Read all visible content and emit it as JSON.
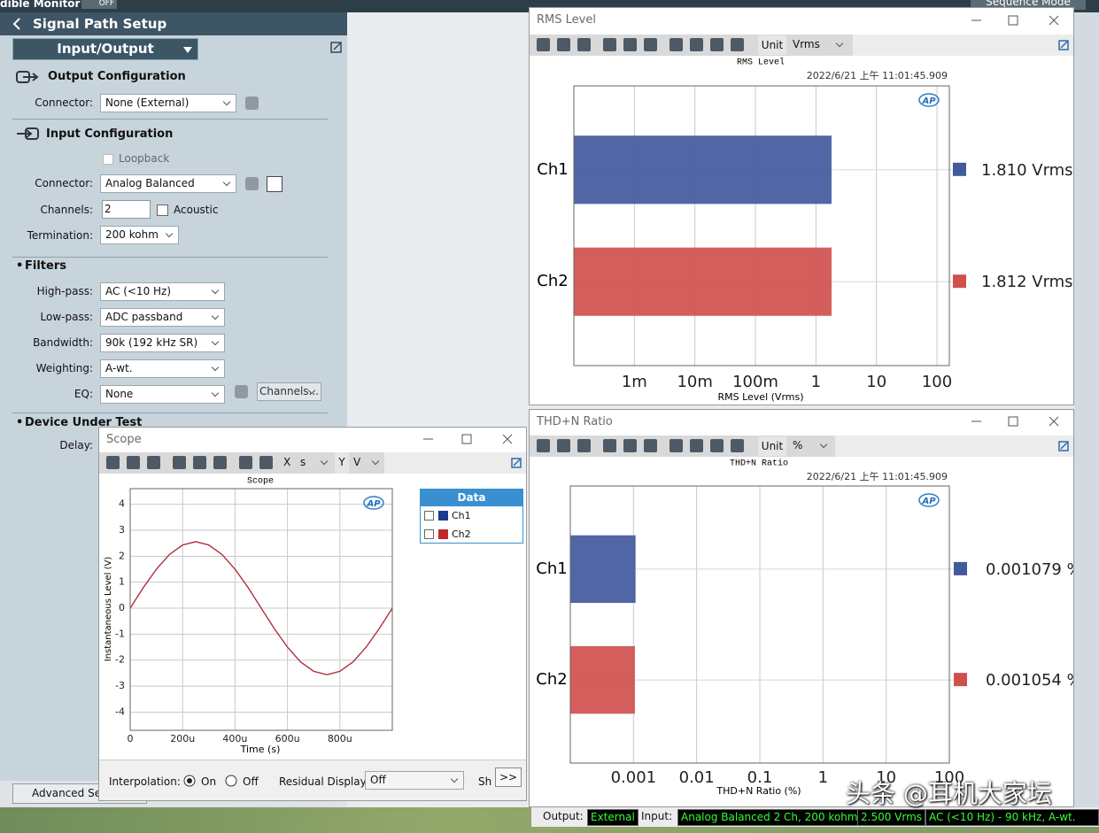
{
  "top_bar": {
    "monitor": "dible Monitor",
    "monitor_state": "OFF",
    "sequence_mode": "Sequence Mode"
  },
  "signal_path": {
    "title": "Signal Path Setup",
    "page": "Input/Output",
    "output_configuration": {
      "title": "Output Configuration",
      "connector_label": "Connector:",
      "connector": "None (External)"
    },
    "input_configuration": {
      "title": "Input Configuration",
      "loopback": "Loopback",
      "connector_label": "Connector:",
      "connector": "Analog Balanced",
      "channels_label": "Channels:",
      "channels": 2,
      "acoustic": "Acoustic",
      "termination_label": "Termination:",
      "termination": "200 kohm"
    },
    "filters": {
      "title": "Filters",
      "rows": [
        [
          "High-pass:",
          "AC (<10 Hz)"
        ],
        [
          "Low-pass:",
          "ADC passband"
        ],
        [
          "Bandwidth:",
          "90k (192 kHz SR)"
        ],
        [
          "Weighting:",
          "A-wt."
        ],
        [
          "EQ:",
          "None"
        ]
      ],
      "channels_button": "Channels..."
    },
    "device_under_test": {
      "title": "Device Under Test",
      "delay_label": "Delay:"
    },
    "advanced_button": "Advanced Sett"
  },
  "logo": "AP",
  "rms_window": {
    "title": "RMS Level",
    "unit_label": "Unit",
    "unit": "Vrms",
    "chart_data": {
      "type": "bar",
      "orientation": "horizontal",
      "title": "RMS Level",
      "timestamp": "2022/6/21 上午 11:01:45.909",
      "x_label": "RMS Level (Vrms)",
      "categories": [
        "Ch1",
        "Ch2"
      ],
      "values": [
        1.81,
        1.812
      ],
      "value_labels": [
        "1.810 Vrms",
        "1.812 Vrms"
      ],
      "colors": [
        "#42599c",
        "#d0504d"
      ],
      "xscale": "log",
      "xlim": [
        0.0001,
        160
      ],
      "xticks": [
        {
          "value": 0.001,
          "label": "1m"
        },
        {
          "value": 0.01,
          "label": "10m"
        },
        {
          "value": 0.1,
          "label": "100m"
        },
        1,
        10,
        100
      ],
      "grid": true
    }
  },
  "thdn_window": {
    "title": "THD+N Ratio",
    "unit_label": "Unit",
    "unit": "%",
    "chart_data": {
      "type": "bar",
      "orientation": "horizontal",
      "title": "THD+N Ratio",
      "timestamp": "2022/6/21 上午 11:01:45.909",
      "x_label": "THD+N Ratio (%)",
      "categories": [
        "Ch1",
        "Ch2"
      ],
      "values": [
        0.001079,
        0.001054
      ],
      "value_labels": [
        "0.001079 %",
        "0.001054 %"
      ],
      "colors": [
        "#42599c",
        "#d0504d"
      ],
      "xscale": "log",
      "xlim": [
        0.0001,
        100
      ],
      "xticks": [
        0.001,
        0.01,
        0.1,
        1,
        10,
        100
      ],
      "grid": true
    }
  },
  "scope_window": {
    "title": "Scope",
    "x_axis": "X",
    "x_unit": "s",
    "y_axis": "Y",
    "y_unit": "V",
    "chart_data": {
      "type": "line",
      "title": "Scope",
      "x_label": "Time (s)",
      "y_label": "Instantaneous Level (V)",
      "legend_title": "Data",
      "x": [
        0,
        5e-05,
        0.0001,
        0.00015,
        0.0002,
        0.00025,
        0.0003,
        0.00035,
        0.0004,
        0.00045,
        0.0005,
        0.00055,
        0.0006,
        0.00065,
        0.0007,
        0.00075,
        0.0008,
        0.00085,
        0.0009,
        0.00095,
        0.001
      ],
      "series": [
        {
          "name": "Ch1",
          "color": "#1c3b8c",
          "values": [
            0,
            0.79,
            1.5,
            2.07,
            2.43,
            2.56,
            2.43,
            2.07,
            1.5,
            0.79,
            0,
            -0.79,
            -1.5,
            -2.07,
            -2.43,
            -2.56,
            -2.43,
            -2.07,
            -1.5,
            -0.79,
            0
          ]
        },
        {
          "name": "Ch2",
          "color": "#c0282e",
          "values": [
            0,
            0.79,
            1.5,
            2.07,
            2.43,
            2.56,
            2.43,
            2.07,
            1.5,
            0.79,
            0,
            -0.79,
            -1.5,
            -2.07,
            -2.43,
            -2.56,
            -2.43,
            -2.07,
            -1.5,
            -0.79,
            0
          ]
        }
      ],
      "xlim": [
        0,
        0.001
      ],
      "ylim": [
        -4.7,
        4.6
      ],
      "xticks": [
        0,
        {
          "value": 0.0002,
          "label": "200u"
        },
        {
          "value": 0.0004,
          "label": "400u"
        },
        {
          "value": 0.0006,
          "label": "600u"
        },
        {
          "value": 0.0008,
          "label": "800u"
        }
      ],
      "yticks": [
        4,
        3,
        2,
        1,
        0,
        -1,
        -2,
        -3,
        -4
      ],
      "grid": true
    },
    "interpolation_label": "Interpolation:",
    "interpolation_on": "On",
    "interpolation_off": "Off",
    "residual_label": "Residual Display:",
    "residual": "Off",
    "sh": "Sh",
    "more": ">>"
  },
  "status_bar": {
    "output_label": "Output:",
    "output": "External",
    "input_label": "Input:",
    "input": "Analog Balanced 2 Ch, 200 kohm",
    "level": "2.500 Vrms",
    "filter": "AC (<10 Hz) - 90 kHz, A-wt."
  },
  "watermark": "头条 @耳机大家坛"
}
